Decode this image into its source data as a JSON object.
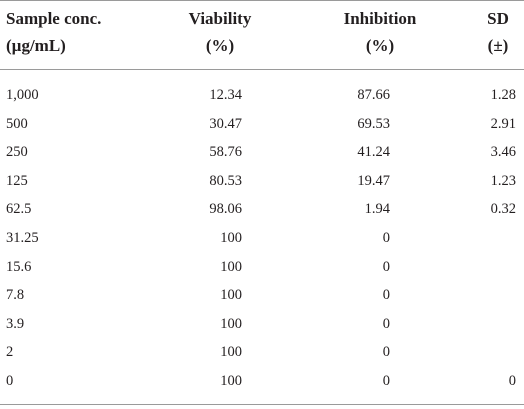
{
  "table": {
    "headers": {
      "sample": [
        "Sample conc.",
        "(µg/mL)"
      ],
      "viability": [
        "Viability",
        "(%)"
      ],
      "inhibition": [
        "Inhibition",
        "(%)"
      ],
      "sd": [
        "SD",
        "(±)"
      ]
    },
    "rows": [
      {
        "conc": "1,000",
        "viability": "12.34",
        "inhibition": "87.66",
        "sd": "1.28"
      },
      {
        "conc": "500",
        "viability": "30.47",
        "inhibition": "69.53",
        "sd": "2.91"
      },
      {
        "conc": "250",
        "viability": "58.76",
        "inhibition": "41.24",
        "sd": "3.46"
      },
      {
        "conc": "125",
        "viability": "80.53",
        "inhibition": "19.47",
        "sd": "1.23"
      },
      {
        "conc": "62.5",
        "viability": "98.06",
        "inhibition": "1.94",
        "sd": "0.32"
      },
      {
        "conc": "31.25",
        "viability": "100",
        "inhibition": "0",
        "sd": ""
      },
      {
        "conc": "15.6",
        "viability": "100",
        "inhibition": "0",
        "sd": ""
      },
      {
        "conc": "7.8",
        "viability": "100",
        "inhibition": "0",
        "sd": ""
      },
      {
        "conc": "3.9",
        "viability": "100",
        "inhibition": "0",
        "sd": ""
      },
      {
        "conc": "2",
        "viability": "100",
        "inhibition": "0",
        "sd": ""
      },
      {
        "conc": "0",
        "viability": "100",
        "inhibition": "0",
        "sd": "0"
      }
    ]
  }
}
